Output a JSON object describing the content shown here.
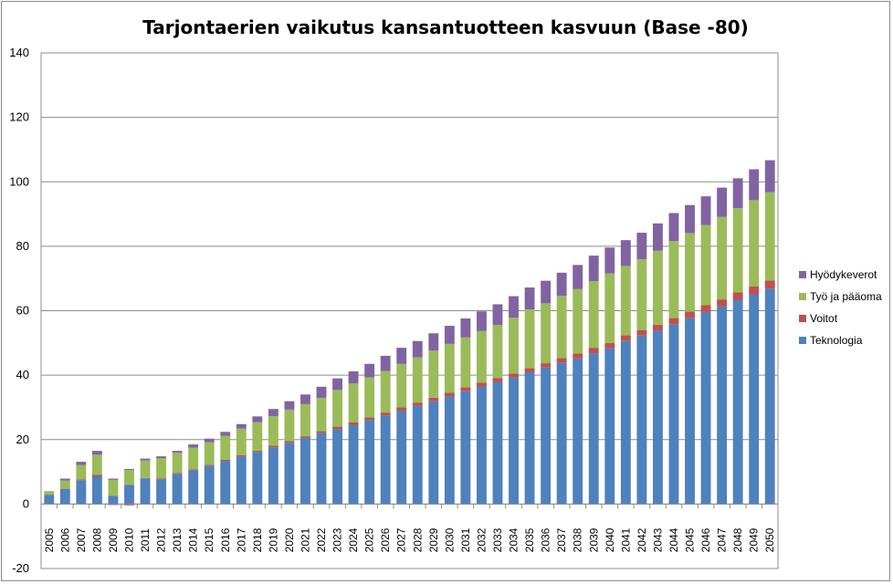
{
  "chart_data": {
    "type": "bar",
    "stacked": true,
    "title": "Tarjontaerien vaikutus kansantuotteen kasvuun (Base -80)",
    "xlabel": "",
    "ylabel": "",
    "ylim": [
      -20,
      140
    ],
    "yticks": [
      -20,
      0,
      20,
      40,
      60,
      80,
      100,
      120,
      140
    ],
    "grid": true,
    "legend_position": "right",
    "categories": [
      "2005",
      "2006",
      "2007",
      "2008",
      "2009",
      "2010",
      "2011",
      "2012",
      "2013",
      "2014",
      "2015",
      "2016",
      "2017",
      "2018",
      "2019",
      "2020",
      "2021",
      "2022",
      "2023",
      "2024",
      "2025",
      "2026",
      "2027",
      "2028",
      "2029",
      "2030",
      "2031",
      "2032",
      "2033",
      "2034",
      "2035",
      "2036",
      "2037",
      "2038",
      "2039",
      "2040",
      "2041",
      "2042",
      "2043",
      "2044",
      "2045",
      "2046",
      "2047",
      "2048",
      "2049",
      "2050"
    ],
    "series": [
      {
        "name": "Teknologia",
        "color": "#4f81bd",
        "values": [
          2.8,
          4.7,
          7.4,
          8.6,
          2.6,
          6.0,
          8.0,
          7.7,
          9.4,
          10.5,
          11.9,
          13.4,
          14.8,
          16.2,
          17.6,
          19.0,
          20.6,
          22.0,
          23.3,
          24.6,
          26.1,
          27.5,
          29.0,
          30.5,
          31.9,
          33.4,
          35.0,
          36.5,
          37.9,
          39.3,
          40.9,
          42.4,
          43.8,
          45.2,
          46.8,
          48.3,
          50.7,
          52.3,
          53.8,
          55.8,
          57.7,
          59.6,
          61.3,
          63.4,
          65.1,
          66.9
        ]
      },
      {
        "name": "Voitot",
        "color": "#c0504d",
        "values": [
          0.1,
          0.1,
          0.2,
          0.5,
          -0.3,
          -0.4,
          0.1,
          0.2,
          0.2,
          0.3,
          0.3,
          0.3,
          0.4,
          0.4,
          0.5,
          0.5,
          0.5,
          0.6,
          0.7,
          0.8,
          0.8,
          0.9,
          1.0,
          1.0,
          1.1,
          1.2,
          1.2,
          1.2,
          1.2,
          1.2,
          1.3,
          1.3,
          1.5,
          1.5,
          1.7,
          1.7,
          1.7,
          1.7,
          1.8,
          1.9,
          2.0,
          2.1,
          2.2,
          2.3,
          2.4,
          2.5
        ]
      },
      {
        "name": "Työ ja pääoma",
        "color": "#9bbb59",
        "values": [
          1.0,
          2.5,
          4.5,
          6.2,
          4.9,
          4.6,
          5.4,
          6.3,
          6.3,
          6.7,
          7.0,
          7.5,
          8.2,
          8.8,
          9.2,
          9.8,
          9.9,
          10.3,
          11.4,
          12.0,
          12.4,
          12.9,
          13.5,
          14.0,
          14.6,
          15.1,
          15.5,
          16.0,
          16.5,
          17.3,
          18.2,
          18.6,
          19.3,
          20.0,
          20.7,
          21.6,
          21.5,
          22.0,
          23.0,
          23.9,
          24.4,
          24.9,
          25.6,
          26.1,
          26.8,
          27.4
        ]
      },
      {
        "name": "Hyödykeverot",
        "color": "#8064a2",
        "values": [
          0.1,
          0.6,
          1.0,
          1.2,
          0.4,
          0.3,
          0.6,
          0.6,
          0.6,
          1.0,
          1.1,
          1.2,
          1.4,
          1.8,
          2.2,
          2.6,
          3.0,
          3.5,
          3.6,
          3.8,
          4.2,
          4.7,
          5.0,
          5.1,
          5.4,
          5.6,
          5.9,
          6.1,
          6.4,
          6.7,
          6.8,
          7.0,
          7.2,
          7.5,
          7.9,
          8.0,
          8.0,
          8.2,
          8.5,
          8.7,
          8.7,
          8.9,
          9.1,
          9.3,
          9.6,
          9.9
        ]
      }
    ],
    "legend_order": [
      "Hyödykeverot",
      "Työ ja pääoma",
      "Voitot",
      "Teknologia"
    ]
  }
}
